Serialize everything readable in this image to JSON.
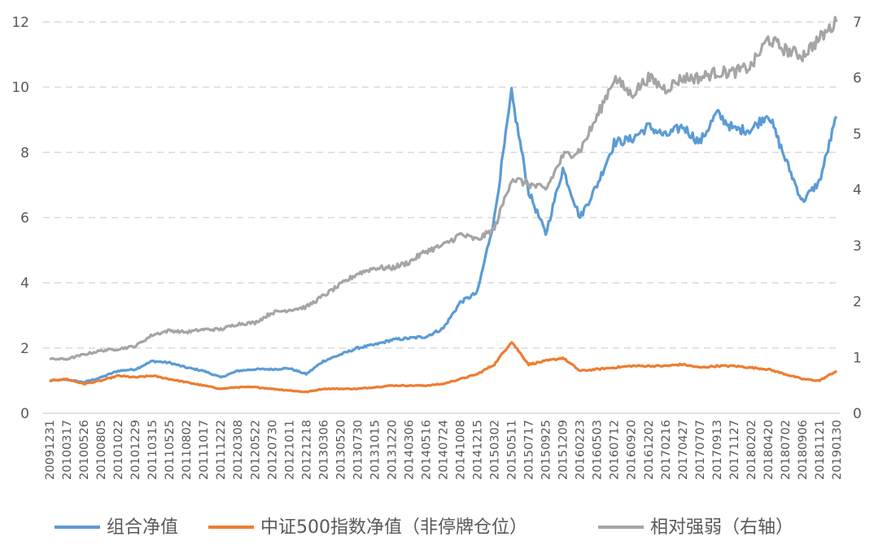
{
  "chart_data": {
    "type": "line",
    "xlabel": "",
    "ylabel_left": "",
    "ylabel_right": "",
    "x_ticks": [
      "20091231",
      "20100317",
      "20100526",
      "20100805",
      "20101022",
      "20101229",
      "20110315",
      "20110525",
      "20110802",
      "20111017",
      "20111222",
      "20120308",
      "20120522",
      "20120730",
      "20121011",
      "20121218",
      "20130306",
      "20130520",
      "20130730",
      "20131015",
      "20131220",
      "20140306",
      "20140516",
      "20140724",
      "20141008",
      "20141215",
      "20150302",
      "20150511",
      "20150717",
      "20150925",
      "20151209",
      "20160223",
      "20160503",
      "20160712",
      "20160920",
      "20161202",
      "20170216",
      "20170427",
      "20170707",
      "20170913",
      "20171127",
      "20180202",
      "20180420",
      "20180702",
      "20180906",
      "20181121",
      "20190130"
    ],
    "y_left": {
      "min": 0,
      "max": 12,
      "ticks": [
        0,
        2,
        4,
        6,
        8,
        10,
        12
      ]
    },
    "y_right": {
      "min": 0,
      "max": 7,
      "ticks": [
        0,
        1,
        2,
        3,
        4,
        5,
        6,
        7
      ]
    },
    "grid": "horizontal dashed",
    "legend_position": "bottom",
    "series": [
      {
        "name": "组合净值",
        "axis": "left",
        "color": "#5B9BD5",
        "x": [
          "20091231",
          "20100317",
          "20100526",
          "20100805",
          "20101022",
          "20101229",
          "20110315",
          "20110525",
          "20110802",
          "20111017",
          "20111222",
          "20120308",
          "20120522",
          "20120730",
          "20121011",
          "20121218",
          "20130306",
          "20130520",
          "20130730",
          "20131015",
          "20131220",
          "20140306",
          "20140516",
          "20140724",
          "20141008",
          "20141215",
          "20150302",
          "20150511",
          "20150717",
          "20150925",
          "20151209",
          "20160223",
          "20160503",
          "20160712",
          "20160920",
          "20161202",
          "20170216",
          "20170427",
          "20170707",
          "20170913",
          "20171127",
          "20180202",
          "20180420",
          "20180702",
          "20180906",
          "20181121",
          "20190130"
        ],
        "values": [
          1.0,
          1.03,
          0.95,
          1.1,
          1.3,
          1.35,
          1.6,
          1.55,
          1.4,
          1.3,
          1.1,
          1.3,
          1.35,
          1.35,
          1.38,
          1.2,
          1.6,
          1.8,
          2.0,
          2.1,
          2.25,
          2.3,
          2.35,
          2.6,
          3.4,
          3.7,
          6.0,
          9.8,
          6.8,
          5.5,
          7.5,
          6.0,
          7.0,
          8.3,
          8.4,
          8.8,
          8.5,
          8.8,
          8.3,
          9.2,
          8.7,
          8.7,
          9.2,
          7.8,
          6.5,
          7.1,
          9.1
        ]
      },
      {
        "name": "中证500指数净值（非停牌仓位）",
        "axis": "left",
        "color": "#ED7D31",
        "x": [
          "20091231",
          "20100317",
          "20100526",
          "20100805",
          "20101022",
          "20101229",
          "20110315",
          "20110525",
          "20110802",
          "20111017",
          "20111222",
          "20120308",
          "20120522",
          "20120730",
          "20121011",
          "20121218",
          "20130306",
          "20130520",
          "20130730",
          "20131015",
          "20131220",
          "20140306",
          "20140516",
          "20140724",
          "20141008",
          "20141215",
          "20150302",
          "20150511",
          "20150717",
          "20150925",
          "20151209",
          "20160223",
          "20160503",
          "20160712",
          "20160920",
          "20161202",
          "20170216",
          "20170427",
          "20170707",
          "20170913",
          "20171127",
          "20180202",
          "20180420",
          "20180702",
          "20180906",
          "20181121",
          "20190130"
        ],
        "values": [
          1.0,
          1.05,
          0.9,
          1.0,
          1.15,
          1.1,
          1.15,
          1.05,
          0.95,
          0.85,
          0.75,
          0.8,
          0.8,
          0.75,
          0.7,
          0.65,
          0.75,
          0.75,
          0.75,
          0.8,
          0.85,
          0.85,
          0.85,
          0.9,
          1.05,
          1.2,
          1.5,
          2.2,
          1.5,
          1.6,
          1.7,
          1.3,
          1.35,
          1.4,
          1.45,
          1.45,
          1.45,
          1.5,
          1.4,
          1.45,
          1.45,
          1.4,
          1.35,
          1.2,
          1.05,
          1.0,
          1.3
        ]
      },
      {
        "name": "相对强弱（右轴）",
        "axis": "right",
        "color": "#A5A5A5",
        "x": [
          "20091231",
          "20100317",
          "20100526",
          "20100805",
          "20101022",
          "20101229",
          "20110315",
          "20110525",
          "20110802",
          "20111017",
          "20111222",
          "20120308",
          "20120522",
          "20120730",
          "20121011",
          "20121218",
          "20130306",
          "20130520",
          "20130730",
          "20131015",
          "20131220",
          "20140306",
          "20140516",
          "20140724",
          "20141008",
          "20141215",
          "20150302",
          "20150511",
          "20150717",
          "20150925",
          "20151209",
          "20160223",
          "20160503",
          "20160712",
          "20160920",
          "20161202",
          "20170216",
          "20170427",
          "20170707",
          "20170913",
          "20171127",
          "20180202",
          "20180420",
          "20180702",
          "20180906",
          "20181121",
          "20190130"
        ],
        "values": [
          0.97,
          0.97,
          1.05,
          1.12,
          1.15,
          1.2,
          1.4,
          1.48,
          1.45,
          1.5,
          1.5,
          1.6,
          1.62,
          1.8,
          1.85,
          1.9,
          2.1,
          2.3,
          2.5,
          2.6,
          2.6,
          2.7,
          2.9,
          3.0,
          3.2,
          3.1,
          3.3,
          4.2,
          4.1,
          4.0,
          4.6,
          4.7,
          5.3,
          6.0,
          5.7,
          6.0,
          5.8,
          6.0,
          6.0,
          6.1,
          6.1,
          6.2,
          6.7,
          6.5,
          6.4,
          6.7,
          7.0
        ]
      }
    ]
  }
}
